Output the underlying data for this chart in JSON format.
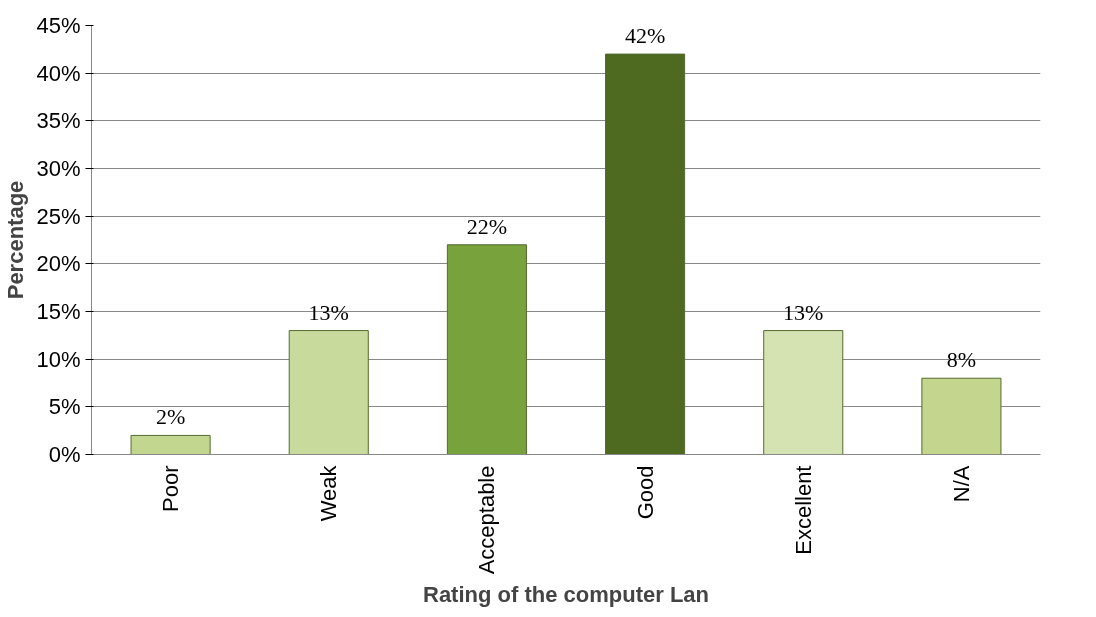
{
  "chart_data": {
    "type": "bar",
    "xlabel": "Rating of the computer Lan",
    "ylabel": "Percentage",
    "categories": [
      "Poor",
      "Weak",
      "Acceptable",
      "Good",
      "Excellent",
      "N/A"
    ],
    "values": [
      2,
      13,
      22,
      42,
      13,
      8
    ],
    "value_labels": [
      "2%",
      "13%",
      "22%",
      "42%",
      "13%",
      "8%"
    ],
    "colors": [
      "#c3d690",
      "#c8db9c",
      "#78a23c",
      "#4e6a20",
      "#d5e3b2",
      "#c4d58e"
    ],
    "ylim": [
      0,
      45
    ],
    "yticks": [
      {
        "value": 0,
        "label": "0%"
      },
      {
        "value": 5,
        "label": "5%"
      },
      {
        "value": 10,
        "label": "10%"
      },
      {
        "value": 15,
        "label": "15%"
      },
      {
        "value": 20,
        "label": "20%"
      },
      {
        "value": 25,
        "label": "25%"
      },
      {
        "value": 30,
        "label": "30%"
      },
      {
        "value": 35,
        "label": "35%"
      },
      {
        "value": 40,
        "label": "40%"
      },
      {
        "value": 45,
        "label": "45%"
      }
    ],
    "grid": "y"
  }
}
